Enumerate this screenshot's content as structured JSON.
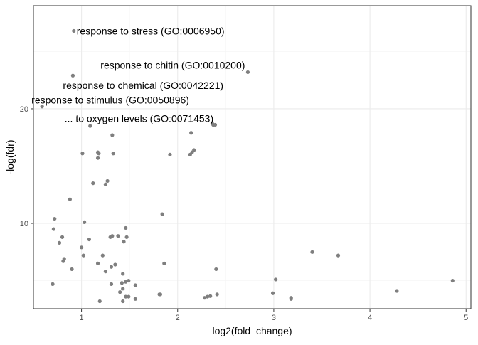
{
  "chart_data": {
    "type": "scatter",
    "title": "",
    "xlabel": "log2(fold_change)",
    "ylabel": "-log(fdr)",
    "xlim": [
      0.5,
      5.05
    ],
    "ylim": [
      2.55,
      29.0
    ],
    "xticks": [
      1,
      2,
      3,
      4,
      5
    ],
    "yticks": [
      10,
      20
    ],
    "grid": true,
    "legend": "none",
    "colors": {
      "point": "#7f7f7f",
      "panel_border": "#333333",
      "grid_major": "#ebebeb",
      "grid_minor": "#f5f5f5"
    },
    "points": [
      {
        "x": 0.92,
        "y": 26.8
      },
      {
        "x": 0.91,
        "y": 22.9
      },
      {
        "x": 0.59,
        "y": 20.2
      },
      {
        "x": 2.73,
        "y": 23.2
      },
      {
        "x": 1.09,
        "y": 18.5
      },
      {
        "x": 1.32,
        "y": 17.7
      },
      {
        "x": 2.14,
        "y": 17.9
      },
      {
        "x": 2.36,
        "y": 18.7
      },
      {
        "x": 2.37,
        "y": 18.6
      },
      {
        "x": 2.39,
        "y": 18.6
      },
      {
        "x": 2.13,
        "y": 16.0
      },
      {
        "x": 2.15,
        "y": 16.2
      },
      {
        "x": 2.17,
        "y": 16.4
      },
      {
        "x": 1.01,
        "y": 16.1
      },
      {
        "x": 1.17,
        "y": 16.2
      },
      {
        "x": 1.18,
        "y": 16.1
      },
      {
        "x": 1.17,
        "y": 15.7
      },
      {
        "x": 1.33,
        "y": 16.1
      },
      {
        "x": 1.92,
        "y": 16.0
      },
      {
        "x": 1.12,
        "y": 13.5
      },
      {
        "x": 1.25,
        "y": 13.4
      },
      {
        "x": 1.27,
        "y": 13.7
      },
      {
        "x": 0.88,
        "y": 12.1
      },
      {
        "x": 1.84,
        "y": 10.8
      },
      {
        "x": 0.72,
        "y": 10.4
      },
      {
        "x": 1.03,
        "y": 10.1
      },
      {
        "x": 0.71,
        "y": 9.5
      },
      {
        "x": 1.46,
        "y": 9.6
      },
      {
        "x": 0.8,
        "y": 8.8
      },
      {
        "x": 1.08,
        "y": 8.6
      },
      {
        "x": 1.3,
        "y": 8.8
      },
      {
        "x": 1.32,
        "y": 8.9
      },
      {
        "x": 1.38,
        "y": 8.9
      },
      {
        "x": 1.47,
        "y": 8.8
      },
      {
        "x": 1.44,
        "y": 8.4
      },
      {
        "x": 0.77,
        "y": 8.3
      },
      {
        "x": 1.0,
        "y": 7.9
      },
      {
        "x": 1.22,
        "y": 7.2
      },
      {
        "x": 1.02,
        "y": 7.2
      },
      {
        "x": 0.82,
        "y": 6.9
      },
      {
        "x": 0.81,
        "y": 6.7
      },
      {
        "x": 1.17,
        "y": 6.5
      },
      {
        "x": 1.35,
        "y": 6.4
      },
      {
        "x": 1.86,
        "y": 6.5
      },
      {
        "x": 0.9,
        "y": 6.0
      },
      {
        "x": 1.31,
        "y": 6.2
      },
      {
        "x": 2.4,
        "y": 6.0
      },
      {
        "x": 1.25,
        "y": 5.8
      },
      {
        "x": 1.43,
        "y": 5.6
      },
      {
        "x": 3.4,
        "y": 7.5
      },
      {
        "x": 3.67,
        "y": 7.2
      },
      {
        "x": 1.46,
        "y": 4.9
      },
      {
        "x": 1.49,
        "y": 5.0
      },
      {
        "x": 1.42,
        "y": 4.8
      },
      {
        "x": 3.02,
        "y": 5.1
      },
      {
        "x": 4.86,
        "y": 5.0
      },
      {
        "x": 0.7,
        "y": 4.7
      },
      {
        "x": 1.31,
        "y": 4.7
      },
      {
        "x": 1.56,
        "y": 4.6
      },
      {
        "x": 1.43,
        "y": 4.3
      },
      {
        "x": 1.4,
        "y": 4.0
      },
      {
        "x": 1.46,
        "y": 3.6
      },
      {
        "x": 1.49,
        "y": 3.6
      },
      {
        "x": 1.81,
        "y": 3.8
      },
      {
        "x": 1.82,
        "y": 3.8
      },
      {
        "x": 2.28,
        "y": 3.5
      },
      {
        "x": 2.31,
        "y": 3.6
      },
      {
        "x": 2.34,
        "y": 3.65
      },
      {
        "x": 2.41,
        "y": 3.8
      },
      {
        "x": 2.99,
        "y": 3.9
      },
      {
        "x": 3.18,
        "y": 3.4
      },
      {
        "x": 3.18,
        "y": 3.5
      },
      {
        "x": 4.28,
        "y": 4.1
      },
      {
        "x": 1.56,
        "y": 3.4
      },
      {
        "x": 1.19,
        "y": 3.2
      },
      {
        "x": 1.43,
        "y": 3.2
      }
    ],
    "annotations": [
      {
        "text": "response to stress (GO:0006950)",
        "x": 0.92,
        "y": 26.8,
        "align": "left"
      },
      {
        "text": "response to chitin (GO:0010200)",
        "x": 2.73,
        "y": 23.2,
        "align": "right"
      },
      {
        "text": "response to chemical (GO:0042221)",
        "x": 0.91,
        "y": 22.9,
        "align": "below-right"
      },
      {
        "text": "response to stimulus (GO:0050896)",
        "x": 0.59,
        "y": 20.2,
        "align": "above-left"
      },
      {
        "text": "... to oxygen levels (GO:0071453)",
        "x": 2.38,
        "y": 18.6,
        "align": "above-left"
      }
    ]
  }
}
